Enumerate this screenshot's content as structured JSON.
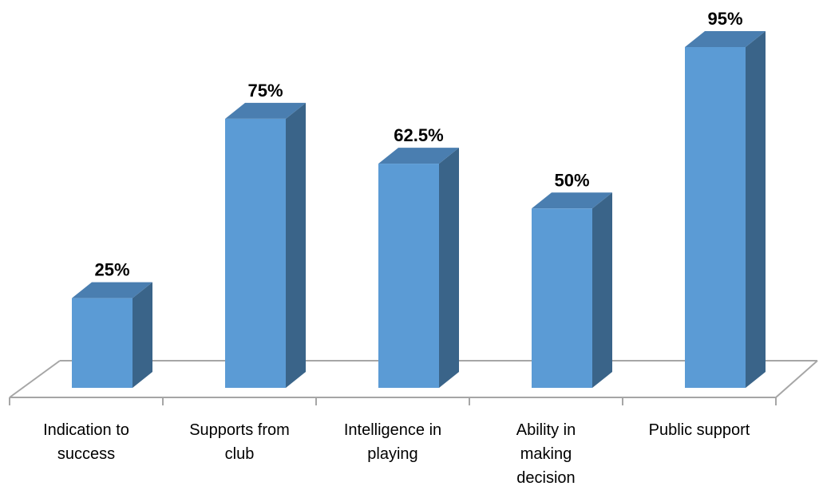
{
  "chart_data": {
    "type": "bar",
    "style": "3d-column",
    "categories": [
      [
        "Indication to",
        "success"
      ],
      [
        "Supports from",
        "club"
      ],
      [
        "Intelligence in",
        "playing"
      ],
      [
        "Ability in",
        "making",
        "decision"
      ],
      [
        "Public support"
      ]
    ],
    "values": [
      25,
      75,
      62.5,
      50,
      95
    ],
    "value_labels": [
      "25%",
      "75%",
      "62.5%",
      "50%",
      "95%"
    ],
    "unit": "%",
    "ylim": [
      0,
      100
    ],
    "grid": false,
    "legend": "none",
    "colors": {
      "bar_front": "#5B9BD5",
      "bar_side": "#3A6489",
      "bar_top": "#4A7EB0",
      "floor_line": "#A6A6A6"
    }
  }
}
